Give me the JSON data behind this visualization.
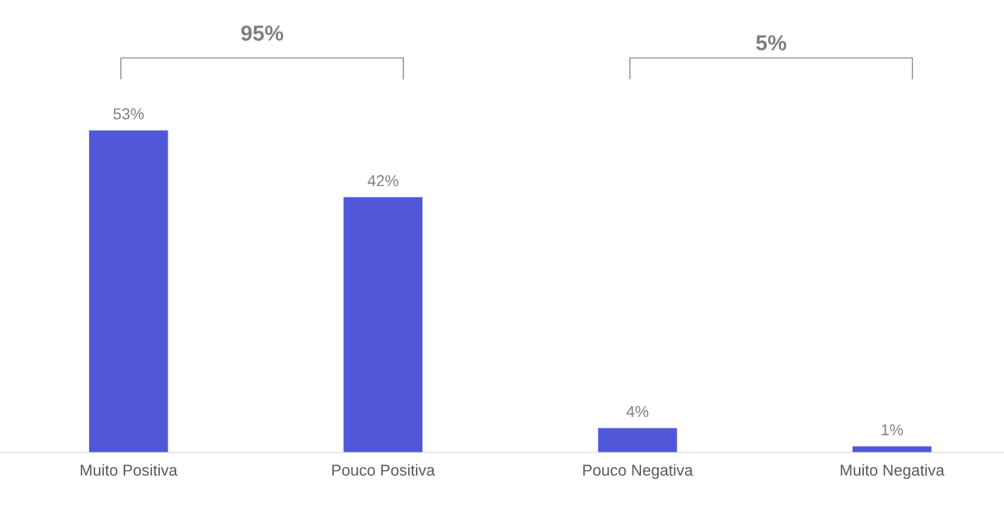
{
  "chart_data": {
    "type": "bar",
    "categories": [
      "Muito Positiva",
      "Pouco Positiva",
      "Pouco Negativa",
      "Muito Negativa"
    ],
    "values": [
      53,
      42,
      4,
      1
    ],
    "value_labels": [
      "53%",
      "42%",
      "4%",
      "1%"
    ],
    "color": "#5057d9",
    "annotations": [
      "95%",
      "5%"
    ],
    "grid": false,
    "legend": false
  }
}
